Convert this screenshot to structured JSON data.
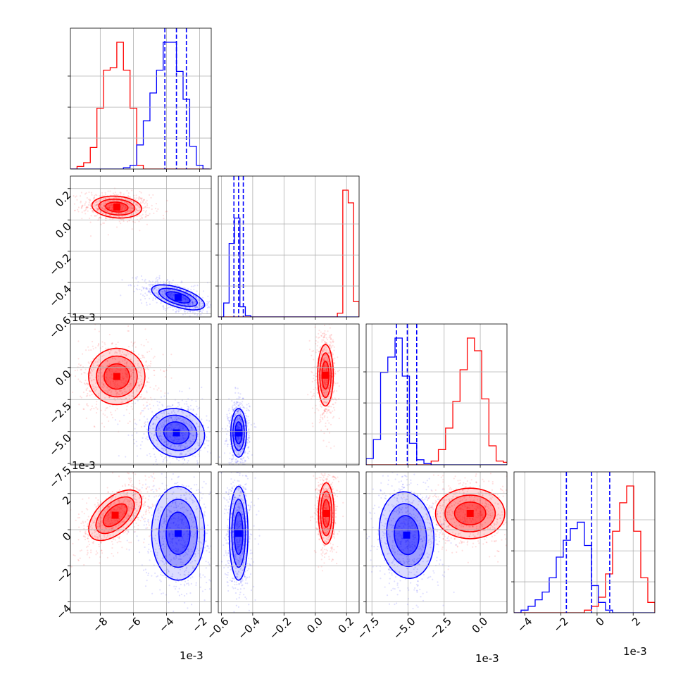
{
  "chart_data": {
    "type": "corner",
    "grid": true,
    "series_colors": [
      "#ff0000",
      "#0000ff"
    ],
    "offset_label": "1e-3",
    "panels": [
      {
        "row": 0,
        "col": 0,
        "kind": "hist",
        "xlim": [
          -9.8,
          -1.3
        ],
        "bin_start": -9.8,
        "bin_width": 0.4,
        "red": [
          0,
          2,
          5,
          17,
          48,
          78,
          80,
          100,
          78,
          48,
          3,
          0,
          0,
          0,
          0,
          0,
          0,
          0,
          0,
          0,
          0
        ],
        "blue": [
          0,
          0,
          0,
          0,
          0,
          0,
          0,
          0,
          1,
          3,
          19,
          38,
          60,
          78,
          100,
          100,
          77,
          55,
          18,
          3,
          0
        ],
        "quantiles": [
          -4.1,
          -3.4,
          -2.8
        ],
        "xticks": [
          -8,
          -6,
          -4,
          -2
        ],
        "yticks": []
      },
      {
        "row": 1,
        "col": 0,
        "kind": "2d",
        "xlim": [
          -9.8,
          -1.3
        ],
        "ylim": [
          -0.62,
          0.28
        ],
        "red": {
          "cx": -7.0,
          "cy": 0.082,
          "sx": 0.75,
          "sy": 0.035,
          "rho": -0.15
        },
        "blue": {
          "cx": -3.3,
          "cy": -0.495,
          "sx": 0.8,
          "sy": 0.04,
          "rho": -0.6
        },
        "xticks": [
          -8,
          -6,
          -4,
          -2
        ],
        "yticks": [
          -0.6,
          -0.4,
          -0.2,
          0.0,
          0.2
        ],
        "ytick_labels": [
          "−0.6",
          "−0.4",
          "−0.2",
          "0.0",
          "0.2"
        ]
      },
      {
        "row": 1,
        "col": 1,
        "kind": "hist",
        "xlim": [
          -0.62,
          0.28
        ],
        "bin_start": -0.62,
        "bin_width": 0.0346,
        "red": [
          0,
          0,
          0,
          0,
          0,
          0,
          0,
          0,
          0,
          0,
          0,
          0,
          0,
          0,
          0,
          0,
          0,
          0,
          0,
          0,
          0,
          0,
          3,
          100,
          90,
          12,
          0
        ],
        "blue": [
          0,
          11,
          58,
          78,
          8,
          1,
          0,
          0,
          0,
          0,
          0,
          0,
          0,
          0,
          0,
          0,
          0,
          0,
          0,
          0,
          0,
          0,
          0,
          0,
          0,
          0,
          0
        ],
        "quantiles": [
          -0.52,
          -0.49,
          -0.46
        ],
        "xticks": [
          -0.6,
          -0.4,
          -0.2,
          0.0,
          0.2
        ],
        "yticks": []
      },
      {
        "row": 2,
        "col": 0,
        "kind": "2d",
        "xlim": [
          -9.8,
          -1.3
        ],
        "ylim": [
          -7.6,
          3.4
        ],
        "red": {
          "cx": -7.0,
          "cy": -0.7,
          "sx": 0.85,
          "sy": 1.1,
          "rho": 0.0
        },
        "blue": {
          "cx": -3.4,
          "cy": -5.1,
          "sx": 0.85,
          "sy": 0.95,
          "rho": -0.1
        },
        "xticks": [
          -8,
          -6,
          -4,
          -2
        ],
        "yticks": [
          -7.5,
          -5.0,
          -2.5,
          0.0
        ],
        "ytick_labels": [
          "−7.5",
          "−5.0",
          "−2.5",
          "0.0"
        ],
        "y_offset": "1e-3"
      },
      {
        "row": 2,
        "col": 1,
        "kind": "2d",
        "xlim": [
          -0.62,
          0.28
        ],
        "ylim": [
          -7.6,
          3.4
        ],
        "red": {
          "cx": 0.065,
          "cy": -0.6,
          "sx": 0.025,
          "sy": 1.2,
          "rho": 0.0
        },
        "blue": {
          "cx": -0.49,
          "cy": -5.1,
          "sx": 0.025,
          "sy": 0.95,
          "rho": 0.0
        },
        "xticks": [
          -0.6,
          -0.4,
          -0.2,
          0.0,
          0.2
        ],
        "yticks": [
          -7.5,
          -5.0,
          -2.5,
          0.0
        ]
      },
      {
        "row": 2,
        "col": 2,
        "kind": "hist",
        "xlim": [
          -7.9,
          1.85
        ],
        "bin_start": -7.9,
        "bin_width": 0.5,
        "red": [
          0,
          0,
          0,
          0,
          0,
          0,
          0,
          0,
          0,
          3,
          12,
          29,
          50,
          75,
          100,
          90,
          52,
          15,
          3,
          2
        ],
        "blue": [
          5,
          20,
          73,
          85,
          100,
          70,
          17,
          4,
          1,
          0,
          0,
          0,
          0,
          0,
          0,
          0,
          0,
          0,
          0,
          0
        ],
        "quantiles": [
          -5.8,
          -5.05,
          -4.4
        ],
        "xticks": [
          -7.5,
          -5.0,
          -2.5,
          0.0
        ],
        "yticks": []
      },
      {
        "row": 3,
        "col": 0,
        "kind": "2d",
        "xlim": [
          -9.8,
          -1.3
        ],
        "ylim": [
          -4.6,
          3.2
        ],
        "red": {
          "cx": -7.1,
          "cy": 0.8,
          "sx": 0.8,
          "sy": 0.7,
          "rho": 0.55
        },
        "blue": {
          "cx": -3.3,
          "cy": -0.2,
          "sx": 0.8,
          "sy": 1.3,
          "rho": 0.0
        },
        "xticks": [
          -8,
          -6,
          -4,
          -2
        ],
        "yticks": [
          -4,
          -2,
          0,
          2
        ],
        "ytick_labels": [
          "−4",
          "−2",
          "0",
          "2"
        ],
        "y_offset": "1e-3"
      },
      {
        "row": 3,
        "col": 1,
        "kind": "2d",
        "xlim": [
          -0.62,
          0.28
        ],
        "ylim": [
          -4.6,
          3.2
        ],
        "red": {
          "cx": 0.07,
          "cy": 0.9,
          "sx": 0.025,
          "sy": 0.85,
          "rho": 0.0
        },
        "blue": {
          "cx": -0.49,
          "cy": -0.2,
          "sx": 0.03,
          "sy": 1.3,
          "rho": 0.0
        },
        "xticks": [
          -0.6,
          -0.4,
          -0.2,
          0.0,
          0.2
        ],
        "xtick_labels": [
          "−0.6",
          "−0.4",
          "−0.2",
          "0.0",
          "0.2"
        ],
        "yticks": [
          -4,
          -2,
          0,
          2
        ]
      },
      {
        "row": 3,
        "col": 2,
        "kind": "2d",
        "xlim": [
          -7.9,
          1.85
        ],
        "ylim": [
          -4.6,
          3.2
        ],
        "red": {
          "cx": -0.7,
          "cy": 0.9,
          "sx": 1.2,
          "sy": 0.7,
          "rho": 0.0
        },
        "blue": {
          "cx": -5.1,
          "cy": -0.3,
          "sx": 0.95,
          "sy": 1.2,
          "rho": -0.1
        },
        "xticks": [
          -7.5,
          -5.0,
          -2.5,
          0.0
        ],
        "xtick_labels": [
          "−7.5",
          "−5.0",
          "−2.5",
          "0.0"
        ],
        "yticks": [
          -4,
          -2,
          0,
          2
        ]
      },
      {
        "row": 3,
        "col": 3,
        "kind": "hist",
        "xlim": [
          -4.6,
          3.2
        ],
        "bin_start": -4.6,
        "bin_width": 0.39,
        "red": [
          0,
          0,
          0,
          0,
          0,
          0,
          0,
          0,
          0,
          0,
          2,
          5,
          12,
          30,
          63,
          85,
          98,
          63,
          27,
          8
        ],
        "blue": [
          0,
          2,
          5,
          10,
          16,
          27,
          43,
          56,
          65,
          70,
          52,
          21,
          8,
          2,
          0,
          0,
          0,
          0,
          0,
          0
        ],
        "quantiles": [
          -1.7,
          -0.3,
          0.7
        ],
        "xticks": [
          -4,
          -2,
          0,
          2
        ],
        "xtick_labels": [
          "−4",
          "−2",
          "0",
          "2"
        ],
        "yticks": []
      }
    ],
    "x_offsets": [
      {
        "col": 0,
        "text": "1e-3"
      },
      {
        "col": 2,
        "text": "1e-3"
      },
      {
        "col": 3,
        "text": "1e-3"
      }
    ]
  }
}
